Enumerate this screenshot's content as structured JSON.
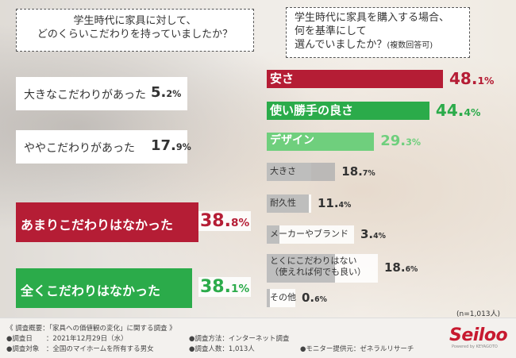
{
  "colors": {
    "red": "#b51d35",
    "green": "#2bab4a",
    "light_green": "#6fcf7d",
    "gray": "#b3b3b3",
    "white": "#ffffff"
  },
  "left_question": [
    "学生時代に家具に対して、",
    "どのくらいこだわりを持っていましたか？"
  ],
  "right_question": [
    "学生時代に家具を購入する場合、",
    "何を基準にして",
    "選んでいましたか？"
  ],
  "right_question_note": "(複数回答可)",
  "chart_data": [
    {
      "type": "bar",
      "categories": [
        "大きなこだわりがあった",
        "ややこだわりがあった",
        "あまりこだわりはなかった",
        "全くこだわりはなかった"
      ],
      "values": [
        5.2,
        17.9,
        38.8,
        38.1
      ],
      "value_labels": [
        [
          "5.",
          "2%"
        ],
        [
          "17.",
          "9%"
        ],
        [
          "38.",
          "8%"
        ],
        [
          "38.",
          "1%"
        ]
      ],
      "unit": "%"
    },
    {
      "type": "bar",
      "categories": [
        "安さ",
        "使い勝手の良さ",
        "デザイン",
        "大きさ",
        "耐久性",
        "メーカーやブランド",
        "とくにこだわりはない",
        "その他"
      ],
      "category_sublabels": [
        "",
        "",
        "",
        "",
        "",
        "",
        "（使えれば何でも良い）",
        ""
      ],
      "values": [
        48.1,
        44.4,
        29.3,
        18.7,
        11.4,
        3.4,
        18.6,
        0.6
      ],
      "value_labels": [
        [
          "48.",
          "1%"
        ],
        [
          "44.",
          "4%"
        ],
        [
          "29.",
          "3%"
        ],
        [
          "18.",
          "7%"
        ],
        [
          "11.",
          "4%"
        ],
        [
          "3.",
          "4%"
        ],
        [
          "18.",
          "6%"
        ],
        [
          "0.",
          "6%"
        ]
      ],
      "unit": "%",
      "sample_note": "(n=1,013人)"
    }
  ],
  "footer": {
    "overview": "《 調査概要：「家具への価値観の変化」に関する調査 》",
    "date": "●調査日　　：2021年12月29日（水）",
    "target": "●調査対象　：全国のマイホームを所有する男女",
    "method": "●調査方法：インターネット調査",
    "count": "●調査人数：1,013人",
    "provider": "●モニター提供元：ゼネラルリサーチ"
  },
  "logo": {
    "name": "Seiloo",
    "sub": "Powered by KEYAGOTO"
  }
}
